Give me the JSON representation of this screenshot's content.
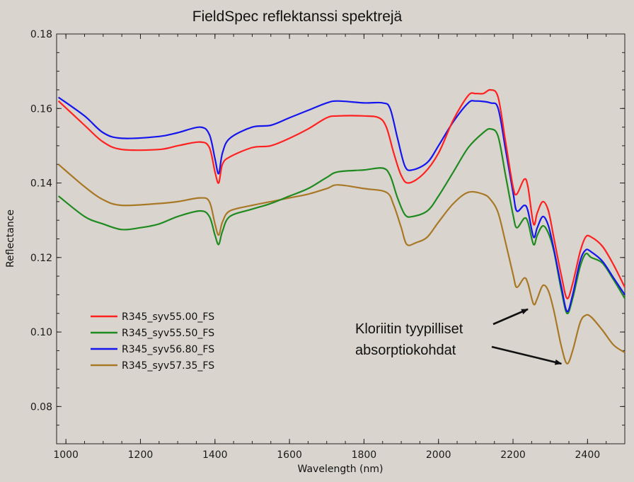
{
  "chart_data": {
    "type": "line",
    "title": "FieldSpec reflektanssi spektrejä",
    "xlabel": "Wavelength (nm)",
    "ylabel": "Reflectance",
    "xlim": [
      975,
      2500
    ],
    "ylim": [
      0.07,
      0.18
    ],
    "xticks": [
      1000,
      1200,
      1400,
      1600,
      1800,
      2000,
      2200,
      2400
    ],
    "yticks": [
      0.08,
      0.1,
      0.12,
      0.14,
      0.16,
      0.18
    ],
    "xtick_labels": [
      "1000",
      "1200",
      "1400",
      "1600",
      "1800",
      "2000",
      "2200",
      "2400"
    ],
    "ytick_labels": [
      "0.08",
      "0.10",
      "0.12",
      "0.14",
      "0.16",
      "0.18"
    ],
    "grid": false,
    "legend_position": "lower-left",
    "series": [
      {
        "name": "R345_syv55.00_FS",
        "color": "#ff2020",
        "points": [
          [
            980,
            0.162
          ],
          [
            1050,
            0.1555
          ],
          [
            1100,
            0.151
          ],
          [
            1150,
            0.149
          ],
          [
            1250,
            0.149
          ],
          [
            1300,
            0.15
          ],
          [
            1360,
            0.151
          ],
          [
            1385,
            0.1495
          ],
          [
            1400,
            0.143
          ],
          [
            1410,
            0.14
          ],
          [
            1420,
            0.145
          ],
          [
            1440,
            0.147
          ],
          [
            1500,
            0.1495
          ],
          [
            1550,
            0.15
          ],
          [
            1600,
            0.152
          ],
          [
            1650,
            0.1545
          ],
          [
            1700,
            0.1575
          ],
          [
            1730,
            0.158
          ],
          [
            1800,
            0.158
          ],
          [
            1840,
            0.1575
          ],
          [
            1860,
            0.155
          ],
          [
            1880,
            0.148
          ],
          [
            1900,
            0.142
          ],
          [
            1920,
            0.14
          ],
          [
            1960,
            0.1425
          ],
          [
            2000,
            0.148
          ],
          [
            2040,
            0.157
          ],
          [
            2080,
            0.1635
          ],
          [
            2100,
            0.164
          ],
          [
            2120,
            0.164
          ],
          [
            2140,
            0.165
          ],
          [
            2160,
            0.163
          ],
          [
            2180,
            0.151
          ],
          [
            2200,
            0.139
          ],
          [
            2210,
            0.137
          ],
          [
            2230,
            0.141
          ],
          [
            2240,
            0.139
          ],
          [
            2255,
            0.129
          ],
          [
            2265,
            0.132
          ],
          [
            2280,
            0.135
          ],
          [
            2295,
            0.1325
          ],
          [
            2310,
            0.125
          ],
          [
            2330,
            0.115
          ],
          [
            2345,
            0.109
          ],
          [
            2360,
            0.113
          ],
          [
            2380,
            0.1215
          ],
          [
            2395,
            0.1255
          ],
          [
            2410,
            0.1255
          ],
          [
            2440,
            0.123
          ],
          [
            2470,
            0.118
          ],
          [
            2500,
            0.112
          ]
        ]
      },
      {
        "name": "R345_syv55.50_FS",
        "color": "#1f8a1f",
        "points": [
          [
            980,
            0.1365
          ],
          [
            1050,
            0.131
          ],
          [
            1100,
            0.129
          ],
          [
            1150,
            0.1275
          ],
          [
            1200,
            0.128
          ],
          [
            1250,
            0.129
          ],
          [
            1300,
            0.131
          ],
          [
            1360,
            0.1325
          ],
          [
            1385,
            0.131
          ],
          [
            1400,
            0.126
          ],
          [
            1410,
            0.1235
          ],
          [
            1420,
            0.127
          ],
          [
            1440,
            0.131
          ],
          [
            1500,
            0.133
          ],
          [
            1550,
            0.1345
          ],
          [
            1600,
            0.1365
          ],
          [
            1650,
            0.1385
          ],
          [
            1700,
            0.1415
          ],
          [
            1730,
            0.143
          ],
          [
            1800,
            0.1435
          ],
          [
            1850,
            0.144
          ],
          [
            1870,
            0.142
          ],
          [
            1890,
            0.136
          ],
          [
            1910,
            0.1315
          ],
          [
            1930,
            0.131
          ],
          [
            1970,
            0.1325
          ],
          [
            2000,
            0.1365
          ],
          [
            2040,
            0.143
          ],
          [
            2080,
            0.1495
          ],
          [
            2120,
            0.1535
          ],
          [
            2140,
            0.1545
          ],
          [
            2160,
            0.1525
          ],
          [
            2180,
            0.142
          ],
          [
            2200,
            0.1315
          ],
          [
            2210,
            0.128
          ],
          [
            2230,
            0.1305
          ],
          [
            2240,
            0.1295
          ],
          [
            2255,
            0.1235
          ],
          [
            2265,
            0.126
          ],
          [
            2280,
            0.1285
          ],
          [
            2295,
            0.1265
          ],
          [
            2310,
            0.1215
          ],
          [
            2330,
            0.111
          ],
          [
            2345,
            0.105
          ],
          [
            2360,
            0.109
          ],
          [
            2380,
            0.1175
          ],
          [
            2395,
            0.121
          ],
          [
            2410,
            0.12
          ],
          [
            2440,
            0.1185
          ],
          [
            2470,
            0.114
          ],
          [
            2500,
            0.109
          ]
        ]
      },
      {
        "name": "R345_syv56.80_FS",
        "color": "#1515ee",
        "points": [
          [
            980,
            0.163
          ],
          [
            1050,
            0.158
          ],
          [
            1100,
            0.1535
          ],
          [
            1150,
            0.152
          ],
          [
            1250,
            0.1525
          ],
          [
            1300,
            0.1535
          ],
          [
            1360,
            0.155
          ],
          [
            1385,
            0.153
          ],
          [
            1400,
            0.1465
          ],
          [
            1410,
            0.1425
          ],
          [
            1420,
            0.148
          ],
          [
            1440,
            0.152
          ],
          [
            1500,
            0.155
          ],
          [
            1550,
            0.1555
          ],
          [
            1600,
            0.1575
          ],
          [
            1650,
            0.1595
          ],
          [
            1700,
            0.1615
          ],
          [
            1730,
            0.162
          ],
          [
            1800,
            0.1615
          ],
          [
            1850,
            0.1615
          ],
          [
            1870,
            0.16
          ],
          [
            1890,
            0.152
          ],
          [
            1910,
            0.1445
          ],
          [
            1930,
            0.1435
          ],
          [
            1970,
            0.1455
          ],
          [
            2000,
            0.15
          ],
          [
            2040,
            0.1565
          ],
          [
            2080,
            0.1615
          ],
          [
            2100,
            0.162
          ],
          [
            2140,
            0.1615
          ],
          [
            2160,
            0.16
          ],
          [
            2180,
            0.149
          ],
          [
            2200,
            0.1375
          ],
          [
            2210,
            0.1325
          ],
          [
            2230,
            0.134
          ],
          [
            2240,
            0.1325
          ],
          [
            2255,
            0.1255
          ],
          [
            2265,
            0.128
          ],
          [
            2280,
            0.131
          ],
          [
            2295,
            0.1285
          ],
          [
            2310,
            0.122
          ],
          [
            2330,
            0.112
          ],
          [
            2345,
            0.1055
          ],
          [
            2360,
            0.11
          ],
          [
            2380,
            0.119
          ],
          [
            2395,
            0.122
          ],
          [
            2410,
            0.1215
          ],
          [
            2440,
            0.119
          ],
          [
            2470,
            0.1145
          ],
          [
            2500,
            0.11
          ]
        ]
      },
      {
        "name": "R345_syv57.35_FS",
        "color": "#a87826",
        "points": [
          [
            980,
            0.145
          ],
          [
            1050,
            0.139
          ],
          [
            1100,
            0.1355
          ],
          [
            1150,
            0.134
          ],
          [
            1250,
            0.1345
          ],
          [
            1300,
            0.135
          ],
          [
            1360,
            0.136
          ],
          [
            1385,
            0.135
          ],
          [
            1400,
            0.129
          ],
          [
            1410,
            0.126
          ],
          [
            1420,
            0.1295
          ],
          [
            1440,
            0.1325
          ],
          [
            1500,
            0.134
          ],
          [
            1550,
            0.135
          ],
          [
            1600,
            0.136
          ],
          [
            1650,
            0.137
          ],
          [
            1700,
            0.1385
          ],
          [
            1730,
            0.1395
          ],
          [
            1800,
            0.1385
          ],
          [
            1860,
            0.1375
          ],
          [
            1880,
            0.134
          ],
          [
            1900,
            0.128
          ],
          [
            1915,
            0.1235
          ],
          [
            1940,
            0.124
          ],
          [
            1970,
            0.1255
          ],
          [
            2000,
            0.1295
          ],
          [
            2040,
            0.1345
          ],
          [
            2080,
            0.1375
          ],
          [
            2120,
            0.137
          ],
          [
            2140,
            0.1355
          ],
          [
            2160,
            0.132
          ],
          [
            2180,
            0.124
          ],
          [
            2200,
            0.1155
          ],
          [
            2210,
            0.112
          ],
          [
            2230,
            0.1145
          ],
          [
            2240,
            0.113
          ],
          [
            2255,
            0.1075
          ],
          [
            2265,
            0.109
          ],
          [
            2280,
            0.1125
          ],
          [
            2295,
            0.111
          ],
          [
            2310,
            0.1055
          ],
          [
            2330,
            0.096
          ],
          [
            2345,
            0.0915
          ],
          [
            2360,
            0.095
          ],
          [
            2380,
            0.1025
          ],
          [
            2395,
            0.1045
          ],
          [
            2410,
            0.104
          ],
          [
            2440,
            0.1005
          ],
          [
            2470,
            0.0965
          ],
          [
            2500,
            0.0945
          ]
        ]
      }
    ],
    "annotations": [
      {
        "lines": [
          "Kloriitin tyypilliset",
          "absorptiokohdat"
        ],
        "arrows_to_x": [
          2255,
          2345
        ],
        "arrows_to_y": [
          0.1065,
          0.0915
        ]
      }
    ]
  }
}
